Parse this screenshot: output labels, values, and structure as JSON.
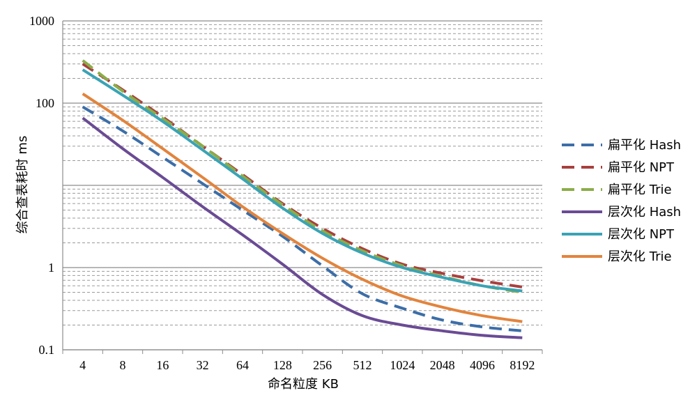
{
  "chart_data": {
    "type": "line",
    "title": "",
    "xlabel": "命名粒度 KB",
    "ylabel": "综合查表耗时 ms",
    "y_scale": "log",
    "ylim": [
      0.1,
      1000
    ],
    "y_ticks": [
      "0.1",
      "1",
      "10",
      "100",
      "1000"
    ],
    "y_tick_labels": [
      "0.1",
      "1",
      "",
      "100",
      "1000"
    ],
    "grid": true,
    "legend": "right",
    "categories": [
      "4",
      "8",
      "16",
      "32",
      "64",
      "128",
      "256",
      "512",
      "1024",
      "2048",
      "4096",
      "8192"
    ],
    "series": [
      {
        "name": "扁平化 Hash",
        "color": "#3c6ea8",
        "style": "dashed",
        "values": [
          90,
          46,
          22,
          10.5,
          5.0,
          2.4,
          1.05,
          0.48,
          0.32,
          0.23,
          0.19,
          0.17
        ]
      },
      {
        "name": "扁平化 NPT",
        "color": "#a8403e",
        "style": "dashed",
        "values": [
          300,
          145,
          68,
          30,
          13.5,
          6.0,
          3.0,
          1.7,
          1.1,
          0.85,
          0.69,
          0.58
        ]
      },
      {
        "name": "扁平化 Trie",
        "color": "#8bad48",
        "style": "dashed",
        "values": [
          330,
          140,
          65,
          30,
          13,
          5.8,
          2.8,
          1.6,
          1.05,
          0.78,
          0.6,
          0.5
        ]
      },
      {
        "name": "层次化 Hash",
        "color": "#6a4b94",
        "style": "solid",
        "values": [
          66,
          28,
          12.5,
          5.5,
          2.5,
          1.1,
          0.47,
          0.26,
          0.2,
          0.17,
          0.15,
          0.14
        ]
      },
      {
        "name": "层次化 NPT",
        "color": "#3aa3b5",
        "style": "solid",
        "values": [
          255,
          125,
          60,
          27,
          12,
          5.3,
          2.6,
          1.5,
          1.0,
          0.76,
          0.6,
          0.52
        ]
      },
      {
        "name": "层次化 Trie",
        "color": "#e2843d",
        "style": "solid",
        "values": [
          130,
          62,
          28,
          12.5,
          5.5,
          2.6,
          1.3,
          0.72,
          0.45,
          0.33,
          0.26,
          0.22
        ]
      }
    ]
  }
}
